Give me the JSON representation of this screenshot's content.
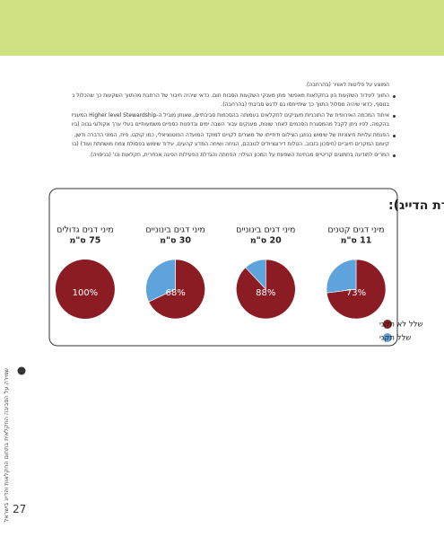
{
  "body": {
    "paragraphs": [
      [
        "המוצע על פליטות לאוויר (בהרחבה)."
      ],
      [
        "התווך לעידוד השקעות הון בחקלאות מאפשר מתן מענקי השקעות הסבות חום. כדאי שיהיה חיבור של הרחבת מהתווך השקעות כך שהכלול נציג סביבתי.",
        "בנוסף, כדאי שיהיה מסלול התווך כך שיתייחסו גם לדגש סביבתי (בהרחבה)."
      ],
      [
        "איחוד המכמה האירופית של התוכניות מעניקים לחקלאים בעמותה בהסכמות סביבתיים, שאותן מוביל ה-Higher level Stewardship המעניק באנגליה",
        "בהקמה, לפיו ניתן לקבל מהמסגרת הסכמים לאחר שונות, מענקים עבור השבה ימים ובדפנות כספיים משמעותיים בעלי ערך אקולוגי גבוה (ביוני)."
      ],
      [
        "הפנמת עלויות חיצוניות של שימוש בנוזגן הצילום ודחייתו של מוצרים לקויים למוקד המועדה הפוטנציאלי, כמו קוקט, פיח, המוני הדברה ודשן, וכן",
        "קיומם המקרים חיוביים (חיסכון בזבוב, הטלות דירוגציולים לגובהם, הגיחה ושיחה המדע קהעים, עידוד שימוש בפסולת צמח מושחתת ועוד) (בהרחבה)."
      ],
      [
        "המרים לתודעה בחתוגים קריטיים מבחינת השפעת על המכון הגילוי: הפחתה והגדלת הפעילות הפיגה אכחרית, חקלאות וכו' (בניסויה)."
      ]
    ]
  },
  "chart_data": {
    "type": "pie",
    "title": "שיעור שלל המכמורות הלא תקני (לפי פקודת הדייג):",
    "categories": [
      "מיני דגים קטנים",
      "מיני דגים בינוניים",
      "מיני דגים בינוניים",
      "מיני דגים גדולים"
    ],
    "sizes": [
      "11 ס\"מ",
      "20 ס\"מ",
      "30 ס\"מ",
      "75 ס\"מ"
    ],
    "series": [
      {
        "name": "שלל לא תקני",
        "color": "#8c1c24",
        "values": [
          73,
          88,
          68,
          100
        ],
        "value_labels": [
          "73%",
          "88%",
          "68%",
          "100%"
        ]
      },
      {
        "name": "שלל תקני",
        "color": "#5ea3dc",
        "values": [
          27,
          12,
          32,
          0
        ]
      }
    ],
    "legend": "bottom-right"
  },
  "sidebar": {
    "text": "שמירה על הסביבה החקלאית בתחום החקלאות והדייג בישראל"
  },
  "page_number": 27
}
